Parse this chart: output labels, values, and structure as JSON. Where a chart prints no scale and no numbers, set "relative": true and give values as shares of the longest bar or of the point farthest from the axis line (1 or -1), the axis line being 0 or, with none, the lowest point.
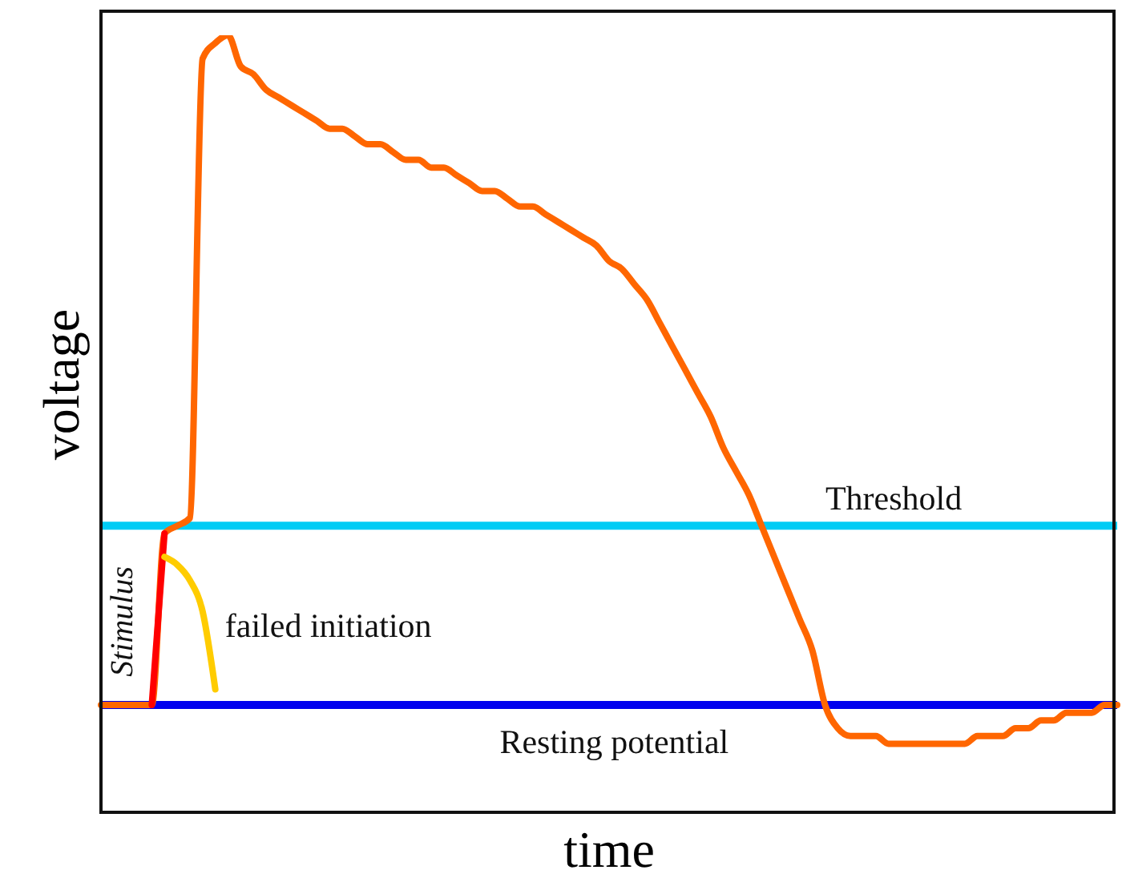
{
  "chart_data": {
    "type": "line",
    "relative": true,
    "xlabel": "time",
    "ylabel": "voltage",
    "categories": [
      null,
      null,
      null,
      null,
      null,
      null,
      null,
      null,
      null,
      null,
      null,
      null,
      null,
      null,
      null,
      null,
      null,
      null,
      null,
      null,
      null,
      null,
      null,
      null,
      null,
      null,
      null,
      null,
      null,
      null,
      null,
      null,
      null,
      null,
      null,
      null,
      null,
      null,
      null,
      null,
      null,
      null,
      null,
      null,
      null,
      null,
      null,
      null,
      null,
      null,
      null,
      null,
      null,
      null,
      null,
      null,
      null,
      null,
      null,
      null,
      null,
      null,
      null,
      null,
      null,
      null,
      null,
      null,
      null,
      null,
      null,
      null,
      null,
      null,
      null,
      null,
      null,
      null,
      null,
      null,
      null
    ],
    "series": [
      {
        "color": "#ff6600",
        "values": [
          0.14,
          0.14,
          0.14,
          0.14,
          0.14,
          0.36,
          0.37,
          0.38,
          0.97,
          0.99,
          1,
          0.96,
          0.95,
          0.93,
          0.92,
          0.91,
          0.9,
          0.89,
          0.88,
          0.88,
          0.87,
          0.86,
          0.86,
          0.85,
          0.84,
          0.84,
          0.83,
          0.83,
          0.82,
          0.81,
          0.8,
          0.8,
          0.79,
          0.78,
          0.78,
          0.77,
          0.76,
          0.75,
          0.74,
          0.73,
          0.71,
          0.7,
          0.68,
          0.66,
          0.63,
          0.6,
          0.57,
          0.54,
          0.51,
          0.47,
          0.44,
          0.41,
          0.37,
          0.33,
          0.29,
          0.25,
          0.21,
          0.14,
          0.11,
          0.1,
          0.1,
          0.1,
          0.09,
          0.09,
          0.09,
          0.09,
          0.09,
          0.09,
          0.09,
          0.1,
          0.1,
          0.1,
          0.11,
          0.11,
          0.12,
          0.12,
          0.13,
          0.13,
          0.13,
          0.14,
          0.14
        ]
      },
      {
        "name": "Stimulus",
        "color": "#ff0000",
        "values": [
          null,
          null,
          null,
          null,
          0.14,
          0.36,
          null,
          null,
          null,
          null,
          null,
          null,
          null,
          null,
          null,
          null,
          null,
          null,
          null,
          null,
          null,
          null,
          null,
          null,
          null,
          null,
          null,
          null,
          null,
          null,
          null,
          null,
          null,
          null,
          null,
          null,
          null,
          null,
          null,
          null,
          null,
          null,
          null,
          null,
          null,
          null,
          null,
          null,
          null,
          null,
          null,
          null,
          null,
          null,
          null,
          null,
          null,
          null,
          null,
          null,
          null,
          null,
          null,
          null,
          null,
          null,
          null,
          null,
          null,
          null,
          null,
          null,
          null,
          null,
          null,
          null,
          null,
          null,
          null,
          null,
          null
        ]
      },
      {
        "name": "failed initiation",
        "color": "#ffcc00",
        "values": [
          null,
          null,
          null,
          null,
          null,
          0.33,
          0.32,
          0.3,
          0.26,
          0.16,
          null,
          null,
          null,
          null,
          null,
          null,
          null,
          null,
          null,
          null,
          null,
          null,
          null,
          null,
          null,
          null,
          null,
          null,
          null,
          null,
          null,
          null,
          null,
          null,
          null,
          null,
          null,
          null,
          null,
          null,
          null,
          null,
          null,
          null,
          null,
          null,
          null,
          null,
          null,
          null,
          null,
          null,
          null,
          null,
          null,
          null,
          null,
          null,
          null,
          null,
          null,
          null,
          null,
          null,
          null,
          null,
          null,
          null,
          null,
          null,
          null,
          null,
          null,
          null,
          null,
          null,
          null,
          null,
          null,
          null,
          null
        ]
      }
    ],
    "ref_lines": [
      {
        "axis": "y",
        "value": 0.37,
        "label": "Threshold",
        "color": "#00ccf5"
      },
      {
        "axis": "y",
        "value": 0.14,
        "label": "Resting potential",
        "color": "#0000ee"
      }
    ]
  }
}
